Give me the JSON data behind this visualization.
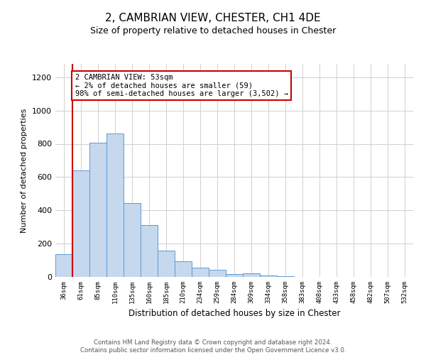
{
  "title": "2, CAMBRIAN VIEW, CHESTER, CH1 4DE",
  "subtitle": "Size of property relative to detached houses in Chester",
  "xlabel": "Distribution of detached houses by size in Chester",
  "ylabel": "Number of detached properties",
  "bar_color": "#c5d8ed",
  "bar_edge_color": "#5b9bd5",
  "bin_labels": [
    "36sqm",
    "61sqm",
    "85sqm",
    "110sqm",
    "135sqm",
    "160sqm",
    "185sqm",
    "210sqm",
    "234sqm",
    "259sqm",
    "284sqm",
    "309sqm",
    "334sqm",
    "358sqm",
    "383sqm",
    "408sqm",
    "433sqm",
    "458sqm",
    "482sqm",
    "507sqm",
    "532sqm"
  ],
  "bar_heights": [
    135,
    640,
    805,
    860,
    445,
    310,
    160,
    95,
    55,
    42,
    18,
    20,
    10,
    4,
    2,
    1,
    0,
    0,
    0,
    0,
    2
  ],
  "ylim": [
    0,
    1280
  ],
  "yticks": [
    0,
    200,
    400,
    600,
    800,
    1000,
    1200
  ],
  "vline_color": "#cc0000",
  "annotation_title": "2 CAMBRIAN VIEW: 53sqm",
  "annotation_line1": "← 2% of detached houses are smaller (59)",
  "annotation_line2": "98% of semi-detached houses are larger (3,502) →",
  "annotation_box_color": "#ffffff",
  "annotation_box_edge": "#cc0000",
  "footer1": "Contains HM Land Registry data © Crown copyright and database right 2024.",
  "footer2": "Contains public sector information licensed under the Open Government Licence v3.0.",
  "background_color": "#ffffff",
  "grid_color": "#d0d0d0"
}
